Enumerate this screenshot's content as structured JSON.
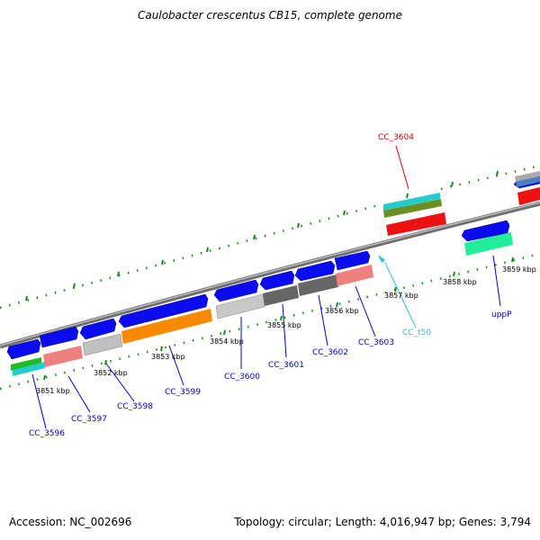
{
  "title": "Caulobacter crescentus CB15, complete genome",
  "footer": {
    "accession": "Accession: NC_002696",
    "stats": "Topology: circular; Length: 4,016,947 bp; Genes: 3,794"
  },
  "ticks": [
    "3851 kbp",
    "3852 kbp",
    "3853 kbp",
    "3854 kbp",
    "3855 kbp",
    "3856 kbp",
    "3857 kbp",
    "3858 kbp",
    "3859 kbp"
  ],
  "genes": [
    {
      "name": "CC_3596",
      "color": "#0000cc"
    },
    {
      "name": "CC_3597",
      "color": "#0000cc"
    },
    {
      "name": "CC_3598",
      "color": "#0000cc"
    },
    {
      "name": "CC_3599",
      "color": "#0000cc"
    },
    {
      "name": "CC_3600",
      "color": "#0000cc"
    },
    {
      "name": "CC_3601",
      "color": "#0000cc"
    },
    {
      "name": "CC_3602",
      "color": "#0000cc"
    },
    {
      "name": "CC_3603",
      "color": "#0000cc"
    },
    {
      "name": "CC_t50",
      "color": "#33bbdd"
    },
    {
      "name": "uppP",
      "color": "#0000cc"
    },
    {
      "name": "CC_3604",
      "color": "#dd0000"
    }
  ],
  "colors": {
    "cds": "#0b0bf0",
    "backbone": "#888888",
    "ticks": "#1a8a1a",
    "trna": "#33bbdd"
  }
}
